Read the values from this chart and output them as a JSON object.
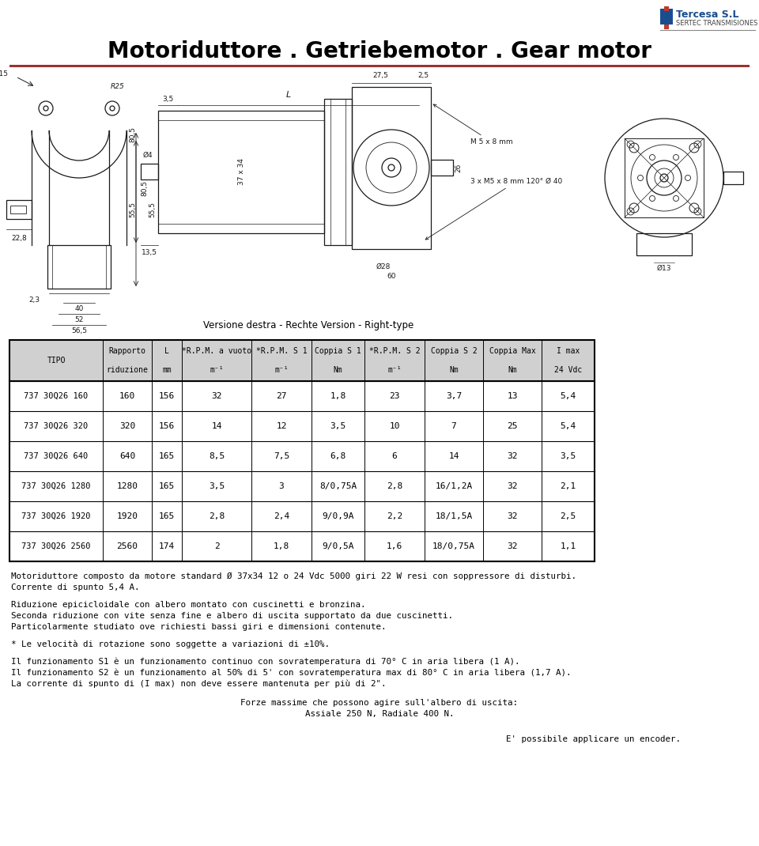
{
  "title": "Motoriduttore . Getriebemotor . Gear motor",
  "title_fontsize": 20,
  "logo_text1": "Tercesa S.L",
  "logo_text2": "SERTEC TRANSMISIONES",
  "separator_color": "#9e3030",
  "table_rows": [
    [
      "737 30Q26 160",
      "160",
      "156",
      "32",
      "27",
      "1,8",
      "23",
      "3,7",
      "13",
      "5,4"
    ],
    [
      "737 30Q26 320",
      "320",
      "156",
      "14",
      "12",
      "3,5",
      "10",
      "7",
      "25",
      "5,4"
    ],
    [
      "737 30Q26 640",
      "640",
      "165",
      "8,5",
      "7,5",
      "6,8",
      "6",
      "14",
      "32",
      "3,5"
    ],
    [
      "737 30Q26 1280",
      "1280",
      "165",
      "3,5",
      "3",
      "8/0,75A",
      "2,8",
      "16/1,2A",
      "32",
      "2,1"
    ],
    [
      "737 30Q26 1920",
      "1920",
      "165",
      "2,8",
      "2,4",
      "9/0,9A",
      "2,2",
      "18/1,5A",
      "32",
      "2,5"
    ],
    [
      "737 30Q26 2560",
      "2560",
      "174",
      "2",
      "1,8",
      "9/0,5A",
      "1,6",
      "18/0,75A",
      "32",
      "1,1"
    ]
  ],
  "header_labels": [
    [
      "TIPO",
      ""
    ],
    [
      "Rapporto",
      "riduzione"
    ],
    [
      "L",
      "mm"
    ],
    [
      "*R.P.M. a vuoto",
      "m⁻¹"
    ],
    [
      "*R.P.M. S 1",
      "m⁻¹"
    ],
    [
      "Coppia S 1",
      "Nm"
    ],
    [
      "*R.P.M. S 2",
      "m⁻¹"
    ],
    [
      "Coppia S 2",
      "Nm"
    ],
    [
      "Coppia Max",
      "Nm"
    ],
    [
      "I max",
      "24 Vdc"
    ]
  ],
  "footnotes": [
    "Motoriduttore composto da motore standard Ø 37x34 12 o 24 Vdc 5000 giri 22 W resi con soppressore di disturbi.",
    "Corrente di spunto 5,4 A.",
    "",
    "Riduzione epicicloidale con albero montato con cuscinetti e bronzina.",
    "Seconda riduzione con vite senza fine e albero di uscita supportato da due cuscinetti.",
    "Particolarmente studiato ove richiesti bassi giri e dimensioni contenute.",
    "",
    "* Le velocità di rotazione sono soggette a variazioni di ±10%.",
    "",
    "Il funzionamento S1 è un funzionamento continuo con sovratemperatura di 70° C in aria libera (1 A).",
    "Il funzionamento S2 è un funzionamento al 50% di 5' con sovratemperatura max di 80° C in aria libera (1,7 A).",
    "La corrente di spunto di (I max) non deve essere mantenuta per più di 2\"."
  ],
  "centered_lines": [
    "Forze massime che possono agire sull'albero di uscita:",
    "Assiale 250 N, Radiale 400 N."
  ],
  "last_line": "E' possibile applicare un encoder.",
  "bg_color": "#ffffff",
  "text_color": "#000000",
  "draw_color": "#1a1a1a",
  "table_line_color": "#000000",
  "header_bg": "#d0d0d0"
}
